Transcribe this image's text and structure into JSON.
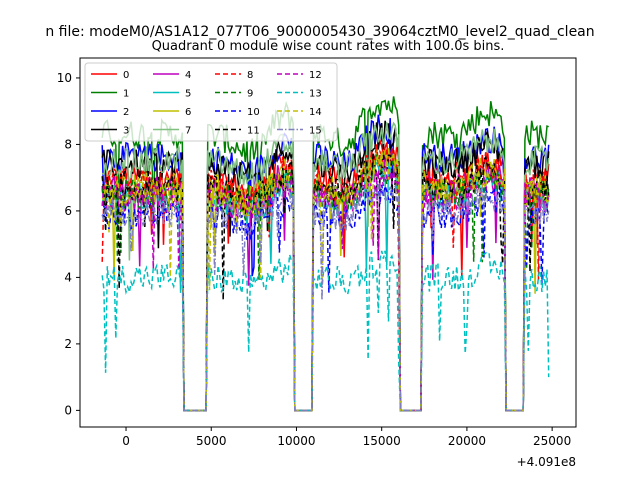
{
  "chart_data": {
    "type": "line",
    "suptitle": "n file: modeM0/AS1A12_077T06_9000005430_39064cztM0_level2_quad_clean",
    "title": "Quadrant 0 module wise count rates with 100.0s bins.",
    "xlabel": "",
    "ylabel": "",
    "x_offset_label": "+4.091e8",
    "xlim": [
      -2700,
      26400
    ],
    "ylim": [
      -0.5,
      10.6
    ],
    "xticks": [
      0,
      5000,
      10000,
      15000,
      20000,
      25000
    ],
    "xtick_labels": [
      "0",
      "5000",
      "10000",
      "15000",
      "20000",
      "25000"
    ],
    "yticks": [
      0,
      2,
      4,
      6,
      8,
      10
    ],
    "ytick_labels": [
      "0",
      "2",
      "4",
      "6",
      "8",
      "10"
    ],
    "legend_position": "top-left",
    "legend_columns": 4,
    "gti_segments": [
      [
        -1400,
        3300
      ],
      [
        4800,
        9800
      ],
      [
        11000,
        16000
      ],
      [
        17400,
        22200
      ],
      [
        23400,
        24800
      ]
    ],
    "series": [
      {
        "name": "0",
        "base": 7.0,
        "color": "#ff0000",
        "dash": "solid"
      },
      {
        "name": "1",
        "base": 8.3,
        "color": "#008000",
        "dash": "solid"
      },
      {
        "name": "2",
        "base": 7.6,
        "color": "#0000ff",
        "dash": "solid"
      },
      {
        "name": "3",
        "base": 7.4,
        "color": "#000000",
        "dash": "solid"
      },
      {
        "name": "4",
        "base": 6.6,
        "color": "#bf00bf",
        "dash": "solid"
      },
      {
        "name": "5",
        "base": 6.4,
        "color": "#00bfbf",
        "dash": "solid"
      },
      {
        "name": "6",
        "base": 6.7,
        "color": "#bfbf00",
        "dash": "solid"
      },
      {
        "name": "7",
        "base": 7.5,
        "color": "#7fbf7f",
        "dash": "solid"
      },
      {
        "name": "8",
        "base": 6.8,
        "color": "#ff0000",
        "dash": "dashed"
      },
      {
        "name": "9",
        "base": 6.5,
        "color": "#008000",
        "dash": "dashed"
      },
      {
        "name": "10",
        "base": 5.9,
        "color": "#0000ff",
        "dash": "dashed"
      },
      {
        "name": "11",
        "base": 6.7,
        "color": "#000000",
        "dash": "dashed"
      },
      {
        "name": "12",
        "base": 6.4,
        "color": "#bf00bf",
        "dash": "dashed"
      },
      {
        "name": "13",
        "base": 4.0,
        "color": "#00bfbf",
        "dash": "dashed"
      },
      {
        "name": "14",
        "base": 6.6,
        "color": "#bfbf00",
        "dash": "dashed"
      },
      {
        "name": "15",
        "base": 6.0,
        "color": "#7f7fbf",
        "dash": "dashdot"
      }
    ]
  }
}
